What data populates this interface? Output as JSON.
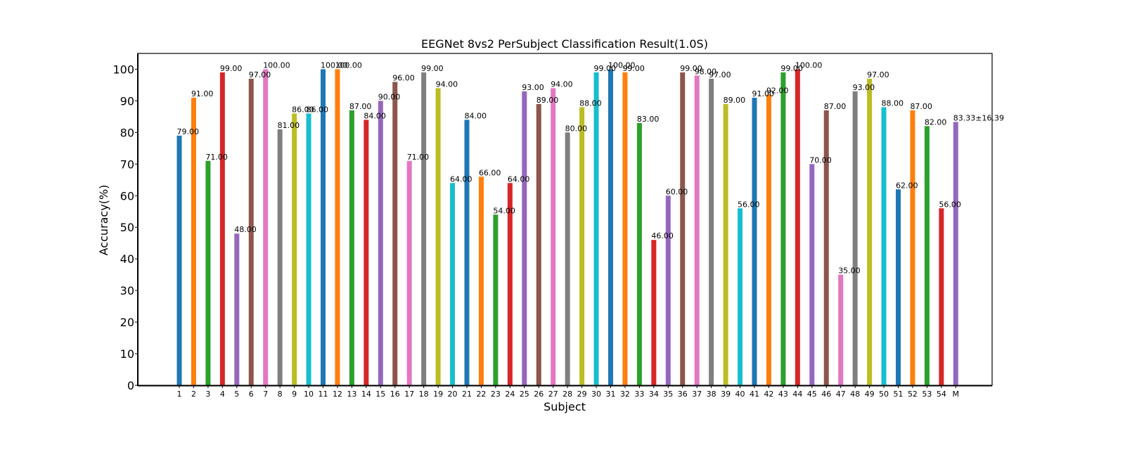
{
  "chart_data": {
    "type": "bar",
    "title": "EEGNet 8vs2 PerSubject Classification Result(1.0S)",
    "xlabel": "Subject",
    "ylabel": "Accuracy(%)",
    "ylim": [
      0,
      105
    ],
    "yticks": [
      "0",
      "10",
      "20",
      "30",
      "40",
      "50",
      "60",
      "70",
      "80",
      "90",
      "100"
    ],
    "grid": false,
    "categories": [
      "1",
      "2",
      "3",
      "4",
      "5",
      "6",
      "7",
      "8",
      "9",
      "10",
      "11",
      "12",
      "13",
      "14",
      "15",
      "16",
      "17",
      "18",
      "19",
      "20",
      "21",
      "22",
      "23",
      "24",
      "25",
      "26",
      "27",
      "28",
      "29",
      "30",
      "31",
      "32",
      "33",
      "34",
      "35",
      "36",
      "37",
      "38",
      "39",
      "40",
      "41",
      "42",
      "43",
      "44",
      "45",
      "46",
      "47",
      "48",
      "49",
      "50",
      "51",
      "52",
      "53",
      "54",
      "M"
    ],
    "values": [
      79,
      91,
      71,
      99,
      48,
      97,
      100,
      81,
      86,
      86,
      100,
      100,
      87,
      84,
      90,
      96,
      71,
      99,
      94,
      64,
      84,
      66,
      54,
      64,
      93,
      89,
      94,
      80,
      88,
      99,
      100,
      99,
      83,
      46,
      60,
      99,
      98,
      97,
      89,
      56,
      91,
      92,
      99,
      100,
      70,
      87,
      35,
      93,
      97,
      88,
      62,
      87,
      82,
      56,
      83.33
    ],
    "labels": [
      "79.00",
      "91.00",
      "71.00",
      "99.00",
      "48.00",
      "97.00",
      "100.00",
      "81.00",
      "86.00",
      "86.00",
      "100.00",
      "100.00",
      "87.00",
      "84.00",
      "90.00",
      "96.00",
      "71.00",
      "99.00",
      "94.00",
      "64.00",
      "84.00",
      "66.00",
      "54.00",
      "64.00",
      "93.00",
      "89.00",
      "94.00",
      "80.00",
      "88.00",
      "99.00",
      "100.00",
      "99.00",
      "83.00",
      "46.00",
      "60.00",
      "99.00",
      "98.00",
      "97.00",
      "89.00",
      "56.00",
      "91.00",
      "92.00",
      "99.00",
      "100.00",
      "70.00",
      "87.00",
      "35.00",
      "93.00",
      "97.00",
      "88.00",
      "62.00",
      "87.00",
      "82.00",
      "56.00",
      "83.33±16.39"
    ],
    "colors": [
      "#1f77b4",
      "#ff7f0e",
      "#2ca02c",
      "#d62728",
      "#9467bd",
      "#8c564b",
      "#e377c2",
      "#7f7f7f",
      "#bcbd22",
      "#17becf"
    ],
    "mean_label_color": "#ff0000"
  }
}
